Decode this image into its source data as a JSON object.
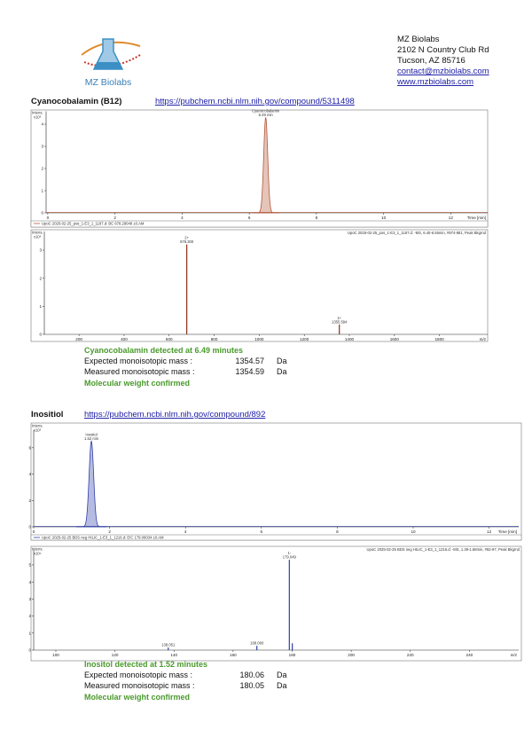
{
  "header": {
    "company": "MZ Biolabs",
    "address": [
      "MZ Biolabs",
      "2102 N Country Club Rd",
      "Tucson, AZ 85716"
    ],
    "email": "contact@mzbiolabs.com",
    "website": "www.mzbiolabs.com"
  },
  "sections": [
    {
      "title": "Cyanocobalamin (B12)",
      "link": "https://pubchem.ncbi.nlm.nih.gov/compound/5311498",
      "charts": [
        {
          "type": "chromatogram",
          "y_label": "Intens.",
          "y_scale": "x10⁶",
          "x_label": "Time [min]",
          "color": "#b4573a",
          "xlim": [
            -0.05,
            13.1
          ],
          "xticks": [
            0,
            2,
            4,
            6,
            8,
            10,
            12
          ],
          "ylim": [
            0,
            4.5
          ],
          "yticks": [
            0,
            1,
            2,
            3,
            4
          ],
          "x": [
            6.49
          ],
          "values": [
            4.3
          ],
          "names": [
            "Cyanocobalamin"
          ],
          "labels": [
            "6.49 min"
          ],
          "info": "UpoC 2025-02-25_pos_1-E3_1_1187.d: BC 678.29048 ±0.AM"
        },
        {
          "type": "spectrum",
          "y_label": "Intens.",
          "y_scale": "x10⁶",
          "x_label": "m/z",
          "color": "#8b2f1a",
          "xlim": [
            46,
            2014
          ],
          "xticks": [
            200,
            400,
            600,
            800,
            1000,
            1200,
            1400,
            1600,
            1800
          ],
          "ylim": [
            0,
            3.6
          ],
          "yticks": [
            0,
            1,
            2,
            3
          ],
          "x": [
            678.3,
            1355.594
          ],
          "values": [
            3.2,
            0.35
          ],
          "charges": [
            "2+",
            "1+"
          ],
          "labels": [
            "678.300",
            "1355.594"
          ],
          "info": "UpoC 2025-02-25_pos_1-E3_1_1187.d: -MS, 6.40-6.55min, #874-881, Peak Bkgrnd"
        }
      ],
      "result": {
        "headline": "Cyanocobalamin detected at 6.49 minutes",
        "rows": [
          {
            "label": "Expected monoisotopic mass :",
            "value": 1354.57,
            "unit": "Da"
          },
          {
            "label": "Measured monoisotopic mass :",
            "value": 1354.59,
            "unit": "Da"
          }
        ],
        "conclusion": "Molecular weight confirmed"
      }
    },
    {
      "title": "Inositiol",
      "link": "https://pubchem.ncbi.nlm.nih.gov/compound/892",
      "charts": [
        {
          "type": "chromatogram",
          "y_label": "Intens.",
          "y_scale": "x10⁵",
          "x_label": "Time [min]",
          "color": "#2f3fa8",
          "xlim": [
            0,
            12.78
          ],
          "xticks": [
            0,
            2,
            4,
            6,
            8,
            10,
            12
          ],
          "ylim": [
            0,
            7.2
          ],
          "yticks": [
            0,
            2,
            4,
            6
          ],
          "x": [
            1.52
          ],
          "values": [
            6.5
          ],
          "names": [
            "Inositol"
          ],
          "labels": [
            "1.52 min"
          ],
          "info": "UpoC 2025-02-25 BDS neg HILIC_1-E3_1_1216.d: EIC 179.06034 ±0.AM"
        },
        {
          "type": "spectrum",
          "y_label": "Intens.",
          "y_scale": "x10⁴",
          "x_label": "m/z",
          "color": "#2f3fa8",
          "xlim": [
            92.5,
            256.7
          ],
          "xticks": [
            100,
            120,
            140,
            160,
            180,
            200,
            220,
            240
          ],
          "ylim": [
            0,
            5.8
          ],
          "yticks": [
            0,
            1,
            2,
            3,
            4,
            5
          ],
          "x": [
            138.051,
            168.06,
            179.049,
            180.052
          ],
          "values": [
            0.15,
            0.25,
            5.3,
            0.4
          ],
          "charges": [
            null,
            null,
            "1-",
            null
          ],
          "labels": [
            "138.051",
            "168.060",
            "179.049",
            null
          ],
          "info": "UpoC 2025-02-25 BDS neg HILIC_1-E3_1_1216.d: -MS, 1.39-1.68min, #82-97, Peak Bkgrnd"
        }
      ],
      "result": {
        "headline": "Inositol detected at 1.52 minutes",
        "rows": [
          {
            "label": "Expected monoisotopic mass :",
            "value": 180.06,
            "unit": "Da"
          },
          {
            "label": "Measured monoisotopic mass :",
            "value": 180.05,
            "unit": "Da"
          }
        ],
        "conclusion": "Molecular weight confirmed"
      }
    }
  ]
}
